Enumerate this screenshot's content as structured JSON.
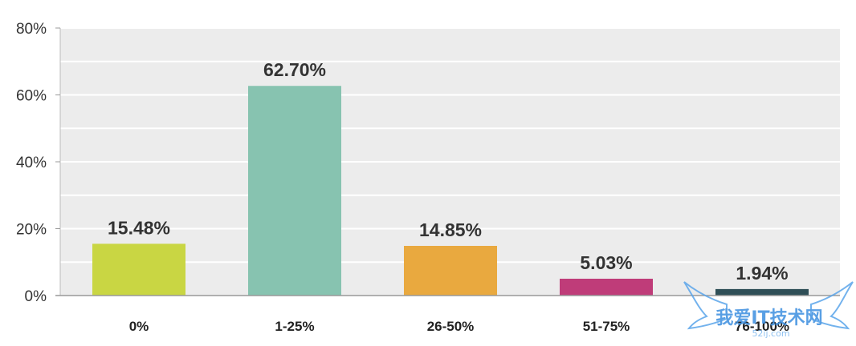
{
  "chart_data": {
    "type": "bar",
    "categories": [
      "0%",
      "1-25%",
      "26-50%",
      "51-75%",
      "76-100%"
    ],
    "values": [
      15.48,
      62.7,
      14.85,
      5.03,
      1.94
    ],
    "data_labels": [
      "15.48%",
      "62.70%",
      "14.85%",
      "5.03%",
      "1.94%"
    ],
    "colors": [
      "#c9d643",
      "#87c3b0",
      "#e9a93f",
      "#bf3c79",
      "#2f4f57"
    ],
    "ylim": [
      0,
      80
    ],
    "y_ticks": [
      0,
      20,
      40,
      60,
      80
    ],
    "y_tick_labels": [
      "0%",
      "20%",
      "40%",
      "60%",
      "80%"
    ],
    "grid": true,
    "plot_background": "#ececec",
    "gridline_color": "#ffffff",
    "title": "",
    "xlabel": "",
    "ylabel": ""
  },
  "watermark": {
    "text": "我爱IT技术网",
    "subtext": "52ij.com",
    "color": "#3d8fe0"
  }
}
